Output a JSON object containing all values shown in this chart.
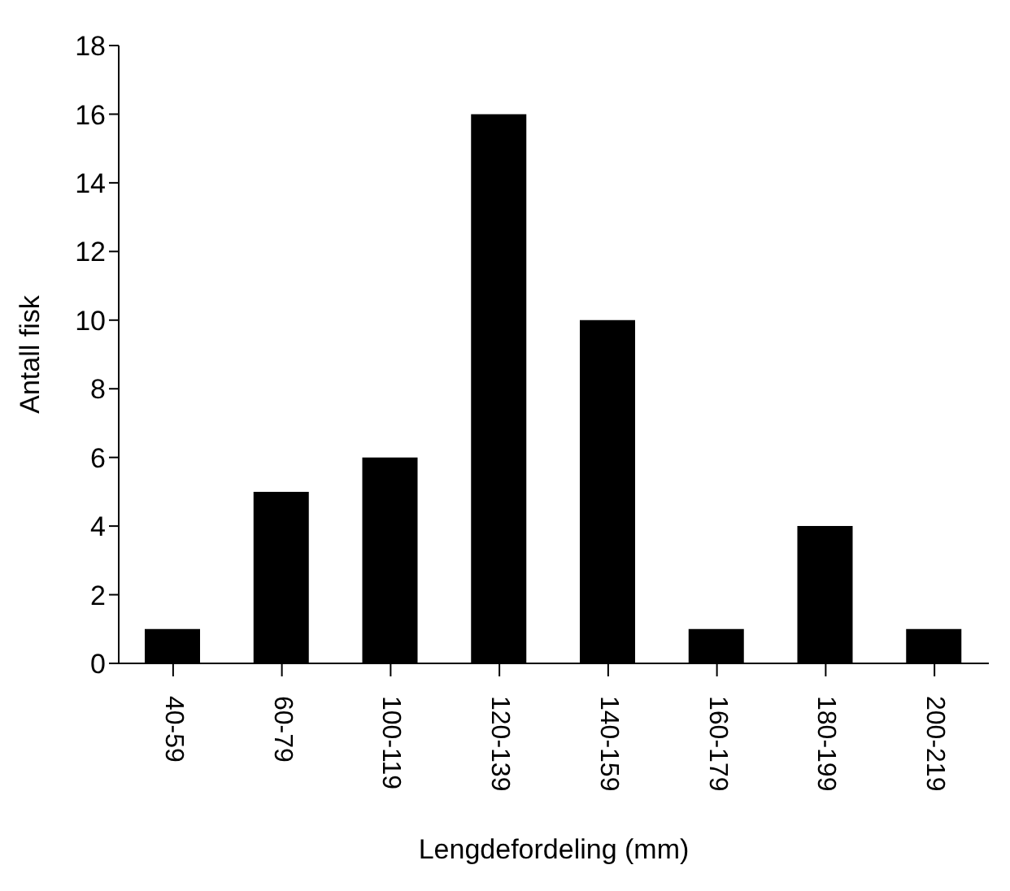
{
  "chart_data": {
    "type": "bar",
    "xlabel": "Lengdefordeling (mm)",
    "ylabel": "Antall fisk",
    "categories": [
      "40-59",
      "60-79",
      "100-119",
      "120-139",
      "140-159",
      "160-179",
      "180-199",
      "200-219"
    ],
    "values": [
      1,
      5,
      6,
      16,
      10,
      1,
      4,
      1
    ],
    "color": "#000000",
    "ylim": [
      0,
      18
    ],
    "yticks": [
      0,
      2,
      4,
      6,
      8,
      10,
      12,
      14,
      16,
      18
    ],
    "grid": false,
    "legend": false
  }
}
